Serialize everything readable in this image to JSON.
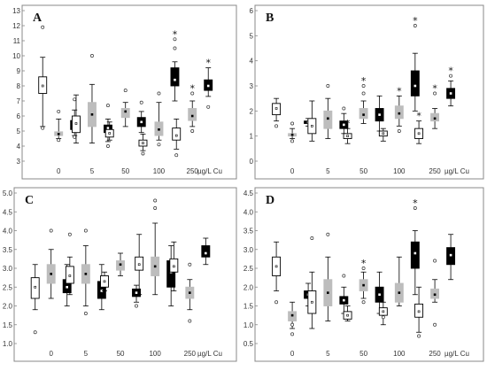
{
  "chart_data": [
    {
      "type": "boxplot",
      "label": "A",
      "ylim": [
        3,
        13
      ],
      "yticks": [
        3,
        4,
        5,
        6,
        7,
        8,
        9,
        10,
        11,
        12,
        13
      ],
      "ytick_labels": [
        "3",
        "4",
        "5",
        "6",
        "7",
        "8",
        "9",
        "10",
        "11",
        "12",
        "13"
      ],
      "categories": [
        "0",
        "5",
        "50",
        "100",
        "250"
      ],
      "unit": "µg/L Cu",
      "series_colors": [
        "#ffffff",
        "#bdbdbd",
        "#000000"
      ],
      "boxes": [
        {
          "cat": 0,
          "s": 0,
          "wlo": 5.3,
          "q1": 7.5,
          "med": 8.0,
          "q3": 8.6,
          "whi": 9.9,
          "out": [
            11.9,
            5.2
          ],
          "star": false
        },
        {
          "cat": 0,
          "s": 1,
          "wlo": 4.5,
          "q1": 4.7,
          "med": 4.8,
          "q3": 4.95,
          "whi": 5.8,
          "out": [
            6.3,
            4.4
          ],
          "star": false
        },
        {
          "cat": 0,
          "s": 2,
          "wlo": 4.7,
          "q1": 5.1,
          "med": 5.4,
          "q3": 5.7,
          "whi": 6.4,
          "out": [
            7.1,
            4.6
          ],
          "star": false
        },
        {
          "cat": 1,
          "s": 0,
          "wlo": 4.2,
          "q1": 4.9,
          "med": 5.5,
          "q3": 6.0,
          "whi": 7.4,
          "out": [],
          "star": false
        },
        {
          "cat": 1,
          "s": 1,
          "wlo": 4.2,
          "q1": 5.3,
          "med": 6.1,
          "q3": 6.9,
          "whi": 8.1,
          "out": [
            10.0
          ],
          "star": false
        },
        {
          "cat": 1,
          "s": 2,
          "wlo": 4.3,
          "q1": 4.9,
          "med": 5.2,
          "q3": 5.4,
          "whi": 5.8,
          "out": [
            6.7,
            4.0
          ],
          "star": false
        },
        {
          "cat": 2,
          "s": 0,
          "wlo": 4.4,
          "q1": 4.6,
          "med": 4.85,
          "q3": 5.1,
          "whi": 5.6,
          "out": [],
          "star": false
        },
        {
          "cat": 2,
          "s": 1,
          "wlo": 5.3,
          "q1": 5.9,
          "med": 6.3,
          "q3": 6.5,
          "whi": 6.9,
          "out": [
            7.7
          ],
          "star": false
        },
        {
          "cat": 2,
          "s": 2,
          "wlo": 4.9,
          "q1": 5.3,
          "med": 5.6,
          "q3": 5.9,
          "whi": 6.3,
          "out": [
            6.9
          ],
          "star": false
        },
        {
          "cat": 3,
          "s": 0,
          "wlo": 3.7,
          "q1": 4.0,
          "med": 4.2,
          "q3": 4.4,
          "whi": 4.8,
          "out": [
            3.5
          ],
          "star": false
        },
        {
          "cat": 3,
          "s": 1,
          "wlo": 4.4,
          "q1": 4.7,
          "med": 5.1,
          "q3": 5.6,
          "whi": 6.9,
          "out": [
            7.5,
            4.1
          ],
          "star": false
        },
        {
          "cat": 3,
          "s": 2,
          "wlo": 7.0,
          "q1": 8.0,
          "med": 8.4,
          "q3": 9.2,
          "whi": 9.6,
          "out": [
            11.1,
            10.5
          ],
          "star": true
        },
        {
          "cat": 4,
          "s": 0,
          "wlo": 3.8,
          "q1": 4.4,
          "med": 4.7,
          "q3": 5.2,
          "whi": 5.8,
          "out": [
            3.4
          ],
          "star": false
        },
        {
          "cat": 4,
          "s": 1,
          "wlo": 5.3,
          "q1": 5.7,
          "med": 6.0,
          "q3": 6.5,
          "whi": 7.0,
          "out": [
            5.0,
            7.5
          ],
          "star": true
        },
        {
          "cat": 4,
          "s": 2,
          "wlo": 7.3,
          "q1": 7.7,
          "med": 8.0,
          "q3": 8.4,
          "whi": 9.2,
          "out": [
            6.6
          ],
          "star": true
        }
      ]
    },
    {
      "type": "boxplot",
      "label": "B",
      "ylim": [
        0,
        6
      ],
      "yticks": [
        0,
        1,
        2,
        3,
        4,
        5,
        6
      ],
      "ytick_labels": [
        "0",
        "1",
        "2",
        "3",
        "4",
        "5",
        "6"
      ],
      "categories": [
        "0",
        "5",
        "50",
        "100",
        "250"
      ],
      "unit": "µg/L Cu",
      "series_colors": [
        "#ffffff",
        "#bdbdbd",
        "#000000"
      ],
      "boxes": [
        {
          "cat": 0,
          "s": 0,
          "wlo": 1.6,
          "q1": 1.85,
          "med": 2.1,
          "q3": 2.3,
          "whi": 2.5,
          "out": [
            1.4
          ],
          "star": false
        },
        {
          "cat": 0,
          "s": 1,
          "wlo": 0.9,
          "q1": 1.0,
          "med": 1.05,
          "q3": 1.1,
          "whi": 1.3,
          "out": [
            1.5,
            0.8
          ],
          "star": false
        },
        {
          "cat": 0,
          "s": 2,
          "wlo": 1.4,
          "q1": 1.5,
          "med": 1.55,
          "q3": 1.6,
          "whi": 1.7,
          "out": [],
          "star": false
        },
        {
          "cat": 1,
          "s": 0,
          "wlo": 0.8,
          "q1": 1.1,
          "med": 1.4,
          "q3": 1.7,
          "whi": 2.4,
          "out": [],
          "star": false
        },
        {
          "cat": 1,
          "s": 1,
          "wlo": 0.9,
          "q1": 1.3,
          "med": 1.7,
          "q3": 2.0,
          "whi": 2.5,
          "out": [
            3.0
          ],
          "star": false
        },
        {
          "cat": 1,
          "s": 2,
          "wlo": 1.1,
          "q1": 1.3,
          "med": 1.45,
          "q3": 1.6,
          "whi": 1.9,
          "out": [
            2.1
          ],
          "star": false
        },
        {
          "cat": 2,
          "s": 0,
          "wlo": 0.7,
          "q1": 0.9,
          "med": 1.0,
          "q3": 1.1,
          "whi": 1.3,
          "out": [],
          "star": true
        },
        {
          "cat": 2,
          "s": 1,
          "wlo": 1.5,
          "q1": 1.7,
          "med": 1.85,
          "q3": 2.1,
          "whi": 2.4,
          "out": [
            2.7,
            3.0
          ],
          "star": true
        },
        {
          "cat": 2,
          "s": 2,
          "wlo": 1.2,
          "q1": 1.6,
          "med": 1.85,
          "q3": 2.1,
          "whi": 2.6,
          "out": [],
          "star": false
        },
        {
          "cat": 3,
          "s": 0,
          "wlo": 0.8,
          "q1": 1.0,
          "med": 1.1,
          "q3": 1.2,
          "whi": 1.3,
          "out": [],
          "star": false
        },
        {
          "cat": 3,
          "s": 1,
          "wlo": 1.4,
          "q1": 1.7,
          "med": 1.9,
          "q3": 2.2,
          "whi": 2.6,
          "out": [
            1.2
          ],
          "star": true
        },
        {
          "cat": 3,
          "s": 2,
          "wlo": 2.0,
          "q1": 2.6,
          "med": 3.0,
          "q3": 3.6,
          "whi": 4.3,
          "out": [
            5.4
          ],
          "star": true
        },
        {
          "cat": 4,
          "s": 0,
          "wlo": 0.7,
          "q1": 0.9,
          "med": 1.1,
          "q3": 1.3,
          "whi": 1.6,
          "out": [],
          "star": true
        },
        {
          "cat": 4,
          "s": 1,
          "wlo": 1.3,
          "q1": 1.6,
          "med": 1.7,
          "q3": 1.9,
          "whi": 2.1,
          "out": [
            2.7
          ],
          "star": true
        },
        {
          "cat": 4,
          "s": 2,
          "wlo": 2.2,
          "q1": 2.5,
          "med": 2.7,
          "q3": 2.9,
          "whi": 3.2,
          "out": [
            3.4
          ],
          "star": true
        }
      ]
    },
    {
      "type": "boxplot",
      "label": "C",
      "ylim": [
        1.0,
        5.0
      ],
      "yticks": [
        1.0,
        1.5,
        2.0,
        2.5,
        3.0,
        3.5,
        4.0,
        4.5,
        5.0
      ],
      "ytick_labels": [
        "1.0",
        "1.5",
        "2.0",
        "2.5",
        "3.0",
        "3.5",
        "4.0",
        "4.5",
        "5.0"
      ],
      "categories": [
        "0",
        "5",
        "50",
        "100",
        "250"
      ],
      "unit": "µg/L Cu",
      "series_colors": [
        "#ffffff",
        "#bdbdbd",
        "#000000"
      ],
      "boxes": [
        {
          "cat": 0,
          "s": 0,
          "wlo": 1.9,
          "q1": 2.2,
          "med": 2.5,
          "q3": 2.75,
          "whi": 3.1,
          "out": [
            1.3
          ],
          "star": false
        },
        {
          "cat": 0,
          "s": 1,
          "wlo": 2.2,
          "q1": 2.6,
          "med": 2.85,
          "q3": 3.1,
          "whi": 3.5,
          "out": [
            4.0
          ],
          "star": false
        },
        {
          "cat": 0,
          "s": 2,
          "wlo": 2.0,
          "q1": 2.35,
          "med": 2.5,
          "q3": 2.7,
          "whi": 3.1,
          "out": [],
          "star": false
        },
        {
          "cat": 1,
          "s": 0,
          "wlo": 2.3,
          "q1": 2.6,
          "med": 2.8,
          "q3": 3.05,
          "whi": 3.3,
          "out": [
            3.9
          ],
          "star": false
        },
        {
          "cat": 1,
          "s": 1,
          "wlo": 2.0,
          "q1": 2.6,
          "med": 2.85,
          "q3": 3.1,
          "whi": 3.6,
          "out": [
            4.0,
            1.8
          ],
          "star": false
        },
        {
          "cat": 1,
          "s": 2,
          "wlo": 1.9,
          "q1": 2.2,
          "med": 2.4,
          "q3": 2.65,
          "whi": 3.1,
          "out": [],
          "star": false
        },
        {
          "cat": 2,
          "s": 0,
          "wlo": 2.4,
          "q1": 2.5,
          "med": 2.65,
          "q3": 2.8,
          "whi": 2.9,
          "out": [],
          "star": false
        },
        {
          "cat": 2,
          "s": 1,
          "wlo": 2.8,
          "q1": 2.95,
          "med": 3.1,
          "q3": 3.2,
          "whi": 3.4,
          "out": [],
          "star": false
        },
        {
          "cat": 2,
          "s": 2,
          "wlo": 2.1,
          "q1": 2.25,
          "med": 2.35,
          "q3": 2.45,
          "whi": 2.55,
          "out": [
            2.0
          ],
          "star": false
        },
        {
          "cat": 3,
          "s": 0,
          "wlo": 2.3,
          "q1": 2.95,
          "med": 3.1,
          "q3": 3.3,
          "whi": 3.9,
          "out": [],
          "star": false
        },
        {
          "cat": 3,
          "s": 1,
          "wlo": 2.3,
          "q1": 2.8,
          "med": 3.05,
          "q3": 3.3,
          "whi": 4.2,
          "out": [
            4.8,
            4.6
          ],
          "star": false
        },
        {
          "cat": 3,
          "s": 2,
          "wlo": 2.0,
          "q1": 2.5,
          "med": 2.9,
          "q3": 3.2,
          "whi": 3.6,
          "out": [],
          "star": false
        },
        {
          "cat": 4,
          "s": 0,
          "wlo": 2.4,
          "q1": 2.9,
          "med": 3.05,
          "q3": 3.25,
          "whi": 3.7,
          "out": [],
          "star": false
        },
        {
          "cat": 4,
          "s": 1,
          "wlo": 1.9,
          "q1": 2.2,
          "med": 2.35,
          "q3": 2.5,
          "whi": 2.7,
          "out": [
            3.1,
            1.6
          ],
          "star": false
        },
        {
          "cat": 4,
          "s": 2,
          "wlo": 3.1,
          "q1": 3.3,
          "med": 3.4,
          "q3": 3.6,
          "whi": 3.8,
          "out": [],
          "star": false
        }
      ]
    },
    {
      "type": "boxplot",
      "label": "D",
      "ylim": [
        0.5,
        4.5
      ],
      "yticks": [
        0.5,
        1.0,
        1.5,
        2.0,
        2.5,
        3.0,
        3.5,
        4.0,
        4.5
      ],
      "ytick_labels": [
        "0.5",
        "1.0",
        "1.5",
        "2.0",
        "2.5",
        "3.0",
        "3.5",
        "4.0",
        "4.5"
      ],
      "categories": [
        "0",
        "5",
        "50",
        "100",
        "250"
      ],
      "unit": "µg/L Cu",
      "series_colors": [
        "#ffffff",
        "#bdbdbd",
        "#000000"
      ],
      "boxes": [
        {
          "cat": 0,
          "s": 0,
          "wlo": 1.9,
          "q1": 2.3,
          "med": 2.55,
          "q3": 2.8,
          "whi": 3.2,
          "out": [
            1.6
          ],
          "star": false
        },
        {
          "cat": 0,
          "s": 1,
          "wlo": 0.9,
          "q1": 1.1,
          "med": 1.25,
          "q3": 1.35,
          "whi": 1.6,
          "out": [
            0.75,
            1.0
          ],
          "star": false
        },
        {
          "cat": 0,
          "s": 2,
          "wlo": 1.5,
          "q1": 1.7,
          "med": 1.8,
          "q3": 1.9,
          "whi": 2.1,
          "out": [],
          "star": false
        },
        {
          "cat": 1,
          "s": 0,
          "wlo": 0.9,
          "q1": 1.3,
          "med": 1.6,
          "q3": 1.9,
          "whi": 2.4,
          "out": [
            3.3
          ],
          "star": false
        },
        {
          "cat": 1,
          "s": 1,
          "wlo": 1.1,
          "q1": 1.5,
          "med": 1.85,
          "q3": 2.2,
          "whi": 2.8,
          "out": [
            3.4
          ],
          "star": false
        },
        {
          "cat": 1,
          "s": 2,
          "wlo": 1.3,
          "q1": 1.55,
          "med": 1.65,
          "q3": 1.75,
          "whi": 2.0,
          "out": [
            2.3
          ],
          "star": false
        },
        {
          "cat": 2,
          "s": 0,
          "wlo": 1.1,
          "q1": 1.15,
          "med": 1.25,
          "q3": 1.35,
          "whi": 1.5,
          "out": [],
          "star": false
        },
        {
          "cat": 2,
          "s": 1,
          "wlo": 1.7,
          "q1": 1.9,
          "med": 2.05,
          "q3": 2.2,
          "whi": 2.4,
          "out": [
            2.5,
            1.6
          ],
          "star": true
        },
        {
          "cat": 2,
          "s": 2,
          "wlo": 1.3,
          "q1": 1.6,
          "med": 1.8,
          "q3": 2.0,
          "whi": 2.4,
          "out": [],
          "star": false
        },
        {
          "cat": 3,
          "s": 0,
          "wlo": 1.0,
          "q1": 1.25,
          "med": 1.35,
          "q3": 1.45,
          "whi": 1.6,
          "out": [
            1.2
          ],
          "star": false
        },
        {
          "cat": 3,
          "s": 1,
          "wlo": 1.5,
          "q1": 1.6,
          "med": 1.85,
          "q3": 2.1,
          "whi": 2.8,
          "out": [],
          "star": false
        },
        {
          "cat": 3,
          "s": 2,
          "wlo": 1.8,
          "q1": 2.5,
          "med": 2.9,
          "q3": 3.2,
          "whi": 3.5,
          "out": [
            4.1
          ],
          "star": true
        },
        {
          "cat": 4,
          "s": 0,
          "wlo": 0.8,
          "q1": 1.2,
          "med": 1.35,
          "q3": 1.55,
          "whi": 2.0,
          "out": [
            0.7
          ],
          "star": false
        },
        {
          "cat": 4,
          "s": 1,
          "wlo": 1.6,
          "q1": 1.7,
          "med": 1.8,
          "q3": 1.95,
          "whi": 2.2,
          "out": [
            1.0,
            2.7
          ],
          "star": false
        },
        {
          "cat": 4,
          "s": 2,
          "wlo": 2.2,
          "q1": 2.6,
          "med": 2.85,
          "q3": 3.05,
          "whi": 3.4,
          "out": [],
          "star": false
        }
      ]
    }
  ]
}
